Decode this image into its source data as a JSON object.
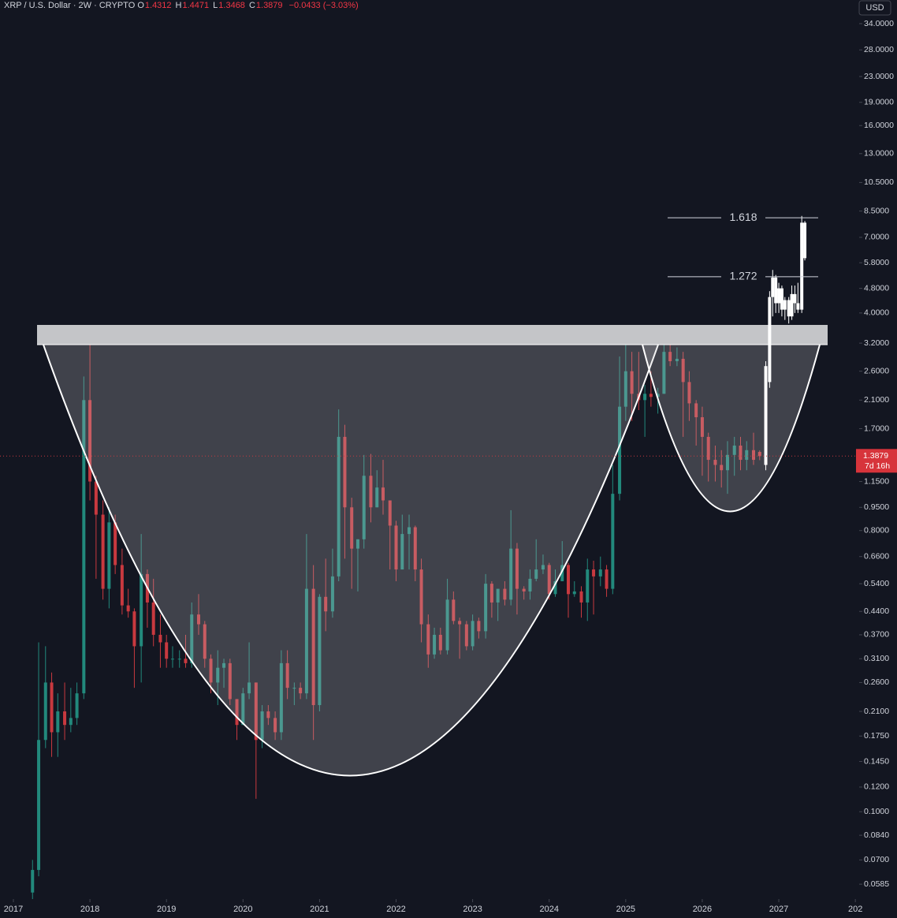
{
  "chart_data": {
    "type": "candlestick",
    "title": "XRP / U.S. Dollar · 2W · CRYPTO",
    "header_ohlc": [
      {
        "label": "O",
        "value": 1.4312
      },
      {
        "label": "H",
        "value": 1.4471
      },
      {
        "label": "L",
        "value": 1.3468
      },
      {
        "label": "C",
        "value": 1.3879
      }
    ],
    "change_text": "−0.0433 (−3.03%)",
    "currency": "USD",
    "last_price": 1.3879,
    "countdown": "7d 16h",
    "log_scale": true,
    "up_color": "#22897c",
    "down_color": "#c8393f",
    "xlim": [
      2016.825,
      2028.05
    ],
    "xticks": [
      2017,
      2018,
      2019,
      2020,
      2021,
      2022,
      2023,
      2024,
      2025,
      2026,
      2027,
      {
        "value": 2028,
        "label": "202"
      }
    ],
    "ylim": [
      0.0524,
      40.5
    ],
    "yticks": [
      {
        "value": 34,
        "label": "34.0000"
      },
      {
        "value": 28,
        "label": "28.0000"
      },
      {
        "value": 23,
        "label": "23.0000"
      },
      {
        "value": 19,
        "label": "19.0000"
      },
      {
        "value": 16,
        "label": "16.0000"
      },
      {
        "value": 13,
        "label": "13.0000"
      },
      {
        "value": 10.5,
        "label": "10.5000"
      },
      {
        "value": 8.5,
        "label": "8.5000"
      },
      {
        "value": 7,
        "label": "7.0000"
      },
      {
        "value": 5.8,
        "label": "5.8000"
      },
      {
        "value": 4.8,
        "label": "4.8000"
      },
      {
        "value": 4,
        "label": "4.0000"
      },
      {
        "value": 3.2,
        "label": "3.2000"
      },
      {
        "value": 2.6,
        "label": "2.6000"
      },
      {
        "value": 2.1,
        "label": "2.1000"
      },
      {
        "value": 1.7,
        "label": "1.7000"
      },
      {
        "value": 1.15,
        "label": "1.1500"
      },
      {
        "value": 0.95,
        "label": "0.9500"
      },
      {
        "value": 0.8,
        "label": "0.8000"
      },
      {
        "value": 0.66,
        "label": "0.6600"
      },
      {
        "value": 0.54,
        "label": "0.5400"
      },
      {
        "value": 0.44,
        "label": "0.4400"
      },
      {
        "value": 0.37,
        "label": "0.3700"
      },
      {
        "value": 0.31,
        "label": "0.3100"
      },
      {
        "value": 0.26,
        "label": "0.2600"
      },
      {
        "value": 0.21,
        "label": "0.2100"
      },
      {
        "value": 0.175,
        "label": "0.1750"
      },
      {
        "value": 0.145,
        "label": "0.1450"
      },
      {
        "value": 0.12,
        "label": "0.1200"
      },
      {
        "value": 0.1,
        "label": "0.1000"
      },
      {
        "value": 0.084,
        "label": "0.0840"
      },
      {
        "value": 0.07,
        "label": "0.0700"
      },
      {
        "value": 0.0585,
        "label": "0.0585"
      }
    ],
    "fib_levels": [
      {
        "label": "1.618",
        "price": 8.09
      },
      {
        "label": "1.272",
        "price": 5.23
      }
    ],
    "series": [
      {
        "x": [
          2017.25,
          2017.33,
          2017.42,
          2017.5,
          2017.58,
          2017.67,
          2017.75,
          2017.83,
          2017.92,
          2018.0,
          2018.08,
          2018.17,
          2018.25,
          2018.33,
          2018.42,
          2018.5,
          2018.58,
          2018.67,
          2018.75,
          2018.83,
          2018.92,
          2019.0,
          2019.08,
          2019.17,
          2019.25,
          2019.33,
          2019.42,
          2019.5,
          2019.58,
          2019.67,
          2019.75,
          2019.83,
          2019.92,
          2020.0,
          2020.08,
          2020.17,
          2020.25,
          2020.33,
          2020.42,
          2020.5,
          2020.58,
          2020.67,
          2020.75,
          2020.83,
          2020.92,
          2021.0,
          2021.08,
          2021.17,
          2021.25,
          2021.33,
          2021.42,
          2021.5,
          2021.58,
          2021.67,
          2021.75,
          2021.83,
          2021.92,
          2022.0,
          2022.08,
          2022.17,
          2022.25,
          2022.33,
          2022.42,
          2022.5,
          2022.58,
          2022.67,
          2022.75,
          2022.83,
          2022.92,
          2023.0,
          2023.08,
          2023.17,
          2023.25,
          2023.33,
          2023.42,
          2023.5,
          2023.58,
          2023.67,
          2023.75,
          2023.83,
          2023.92,
          2024.0,
          2024.08,
          2024.17,
          2024.25,
          2024.33,
          2024.42,
          2024.5,
          2024.58,
          2024.67,
          2024.75,
          2024.83,
          2024.92,
          2025.0,
          2025.08,
          2025.17,
          2025.25,
          2025.33,
          2025.42,
          2025.5,
          2025.58,
          2025.67,
          2025.75,
          2025.83,
          2025.92,
          2026.0,
          2026.08,
          2026.17,
          2026.25,
          2026.33,
          2026.42,
          2026.5,
          2026.58,
          2026.67,
          2026.75
        ],
        "ohlc": [
          [
            0.055,
            0.07,
            0.052,
            0.065
          ],
          [
            0.065,
            0.35,
            0.062,
            0.17
          ],
          [
            0.17,
            0.34,
            0.16,
            0.26
          ],
          [
            0.26,
            0.28,
            0.15,
            0.18
          ],
          [
            0.18,
            0.24,
            0.15,
            0.21
          ],
          [
            0.21,
            0.26,
            0.17,
            0.19
          ],
          [
            0.19,
            0.25,
            0.18,
            0.2
          ],
          [
            0.2,
            0.26,
            0.19,
            0.24
          ],
          [
            0.24,
            2.5,
            0.23,
            2.1
          ],
          [
            2.1,
            3.3,
            1.0,
            1.15
          ],
          [
            1.15,
            1.2,
            0.56,
            0.9
          ],
          [
            0.9,
            1.0,
            0.48,
            0.52
          ],
          [
            0.52,
            0.95,
            0.45,
            0.85
          ],
          [
            0.85,
            0.9,
            0.58,
            0.62
          ],
          [
            0.62,
            0.7,
            0.43,
            0.46
          ],
          [
            0.46,
            0.52,
            0.42,
            0.44
          ],
          [
            0.44,
            0.45,
            0.25,
            0.34
          ],
          [
            0.34,
            0.78,
            0.26,
            0.58
          ],
          [
            0.58,
            0.6,
            0.39,
            0.47
          ],
          [
            0.47,
            0.56,
            0.34,
            0.37
          ],
          [
            0.37,
            0.43,
            0.29,
            0.35
          ],
          [
            0.35,
            0.37,
            0.29,
            0.31
          ],
          [
            0.31,
            0.34,
            0.29,
            0.31
          ],
          [
            0.31,
            0.33,
            0.29,
            0.31
          ],
          [
            0.31,
            0.37,
            0.29,
            0.3
          ],
          [
            0.3,
            0.47,
            0.29,
            0.43
          ],
          [
            0.43,
            0.5,
            0.37,
            0.4
          ],
          [
            0.4,
            0.41,
            0.29,
            0.31
          ],
          [
            0.31,
            0.32,
            0.24,
            0.26
          ],
          [
            0.26,
            0.33,
            0.22,
            0.29
          ],
          [
            0.29,
            0.31,
            0.25,
            0.3
          ],
          [
            0.3,
            0.31,
            0.22,
            0.23
          ],
          [
            0.23,
            0.23,
            0.17,
            0.19
          ],
          [
            0.19,
            0.25,
            0.19,
            0.24
          ],
          [
            0.24,
            0.35,
            0.23,
            0.26
          ],
          [
            0.26,
            0.26,
            0.11,
            0.17
          ],
          [
            0.17,
            0.22,
            0.16,
            0.21
          ],
          [
            0.21,
            0.22,
            0.19,
            0.2
          ],
          [
            0.2,
            0.21,
            0.17,
            0.18
          ],
          [
            0.18,
            0.33,
            0.17,
            0.3
          ],
          [
            0.3,
            0.33,
            0.23,
            0.25
          ],
          [
            0.25,
            0.26,
            0.22,
            0.25
          ],
          [
            0.25,
            0.26,
            0.23,
            0.24
          ],
          [
            0.24,
            0.78,
            0.23,
            0.52
          ],
          [
            0.52,
            0.62,
            0.17,
            0.22
          ],
          [
            0.22,
            0.5,
            0.21,
            0.49
          ],
          [
            0.49,
            0.65,
            0.38,
            0.44
          ],
          [
            0.44,
            0.7,
            0.42,
            0.57
          ],
          [
            0.57,
            1.96,
            0.55,
            1.6
          ],
          [
            1.6,
            1.75,
            0.65,
            0.95
          ],
          [
            0.95,
            1.02,
            0.52,
            0.7
          ],
          [
            0.7,
            0.75,
            0.51,
            0.75
          ],
          [
            0.75,
            1.4,
            0.7,
            1.2
          ],
          [
            1.2,
            1.41,
            0.85,
            0.95
          ],
          [
            0.95,
            1.25,
            0.95,
            1.1
          ],
          [
            1.1,
            1.35,
            0.9,
            1.0
          ],
          [
            1.0,
            1.0,
            0.6,
            0.83
          ],
          [
            0.83,
            0.86,
            0.55,
            0.6
          ],
          [
            0.6,
            0.9,
            0.6,
            0.78
          ],
          [
            0.78,
            0.9,
            0.6,
            0.82
          ],
          [
            0.82,
            0.83,
            0.55,
            0.6
          ],
          [
            0.6,
            0.65,
            0.35,
            0.4
          ],
          [
            0.4,
            0.43,
            0.29,
            0.32
          ],
          [
            0.32,
            0.39,
            0.31,
            0.37
          ],
          [
            0.37,
            0.39,
            0.32,
            0.33
          ],
          [
            0.33,
            0.56,
            0.32,
            0.48
          ],
          [
            0.48,
            0.51,
            0.4,
            0.41
          ],
          [
            0.41,
            0.42,
            0.31,
            0.4
          ],
          [
            0.4,
            0.41,
            0.33,
            0.34
          ],
          [
            0.34,
            0.43,
            0.33,
            0.41
          ],
          [
            0.41,
            0.42,
            0.36,
            0.38
          ],
          [
            0.38,
            0.58,
            0.36,
            0.54
          ],
          [
            0.54,
            0.55,
            0.42,
            0.47
          ],
          [
            0.47,
            0.48,
            0.41,
            0.52
          ],
          [
            0.52,
            0.55,
            0.46,
            0.48
          ],
          [
            0.48,
            0.93,
            0.46,
            0.7
          ],
          [
            0.7,
            0.73,
            0.43,
            0.52
          ],
          [
            0.52,
            0.53,
            0.48,
            0.51
          ],
          [
            0.51,
            0.6,
            0.48,
            0.56
          ],
          [
            0.56,
            0.75,
            0.55,
            0.6
          ],
          [
            0.6,
            0.67,
            0.58,
            0.62
          ],
          [
            0.62,
            0.63,
            0.48,
            0.5
          ],
          [
            0.5,
            0.6,
            0.49,
            0.55
          ],
          [
            0.55,
            0.74,
            0.55,
            0.62
          ],
          [
            0.62,
            0.63,
            0.42,
            0.5
          ],
          [
            0.5,
            0.55,
            0.49,
            0.51
          ],
          [
            0.51,
            0.53,
            0.42,
            0.47
          ],
          [
            0.47,
            0.65,
            0.41,
            0.6
          ],
          [
            0.6,
            0.64,
            0.43,
            0.57
          ],
          [
            0.57,
            0.66,
            0.53,
            0.6
          ],
          [
            0.6,
            0.62,
            0.49,
            0.52
          ],
          [
            0.52,
            1.3,
            0.5,
            1.05
          ],
          [
            1.05,
            2.9,
            1.0,
            2.0
          ],
          [
            2.0,
            3.4,
            1.8,
            2.6
          ],
          [
            2.6,
            3.0,
            1.8,
            2.2
          ],
          [
            2.2,
            3.0,
            1.95,
            2.1
          ],
          [
            2.1,
            2.35,
            1.6,
            2.2
          ],
          [
            2.2,
            2.6,
            2.0,
            2.15
          ],
          [
            2.15,
            2.3,
            1.9,
            2.2
          ],
          [
            2.2,
            3.65,
            2.2,
            3.0
          ],
          [
            3.0,
            3.4,
            2.7,
            2.8
          ],
          [
            2.8,
            3.1,
            2.7,
            2.85
          ],
          [
            2.85,
            3.0,
            1.6,
            2.4
          ],
          [
            2.4,
            2.6,
            1.8,
            2.05
          ],
          [
            2.05,
            2.1,
            1.5,
            1.85
          ],
          [
            1.85,
            2.0,
            1.2,
            1.6
          ],
          [
            1.6,
            1.65,
            1.15,
            1.35
          ],
          [
            1.35,
            1.5,
            1.15,
            1.3
          ],
          [
            1.3,
            1.45,
            1.1,
            1.25
          ],
          [
            1.25,
            1.55,
            1.05,
            1.4
          ],
          [
            1.4,
            1.6,
            1.2,
            1.5
          ],
          [
            1.5,
            1.6,
            1.25,
            1.35
          ],
          [
            1.35,
            1.55,
            1.25,
            1.45
          ],
          [
            1.45,
            1.65,
            1.3,
            1.35
          ],
          [
            1.4312,
            1.4471,
            1.3468,
            1.3879
          ]
        ]
      },
      {
        "color": "#ffffff",
        "x": [
          2026.83,
          2026.88,
          2026.92,
          2026.96,
          2027.0,
          2027.04,
          2027.08,
          2027.13,
          2027.17,
          2027.21,
          2027.25,
          2027.3,
          2027.34
        ],
        "ohlc": [
          [
            1.3,
            2.8,
            1.25,
            2.7
          ],
          [
            2.4,
            4.7,
            2.3,
            4.5
          ],
          [
            4.5,
            5.5,
            3.9,
            5.2
          ],
          [
            5.2,
            5.3,
            4.0,
            4.3
          ],
          [
            4.3,
            5.0,
            4.0,
            4.8
          ],
          [
            4.8,
            4.9,
            3.9,
            4.1
          ],
          [
            4.1,
            4.5,
            3.8,
            4.4
          ],
          [
            4.4,
            4.5,
            3.7,
            3.9
          ],
          [
            3.9,
            4.9,
            3.8,
            4.6
          ],
          [
            4.6,
            4.9,
            4.0,
            4.3
          ],
          [
            4.3,
            5.0,
            4.0,
            4.1
          ],
          [
            4.1,
            8.2,
            4.0,
            7.8
          ],
          [
            7.8,
            7.9,
            5.9,
            6.0
          ]
        ]
      }
    ]
  }
}
